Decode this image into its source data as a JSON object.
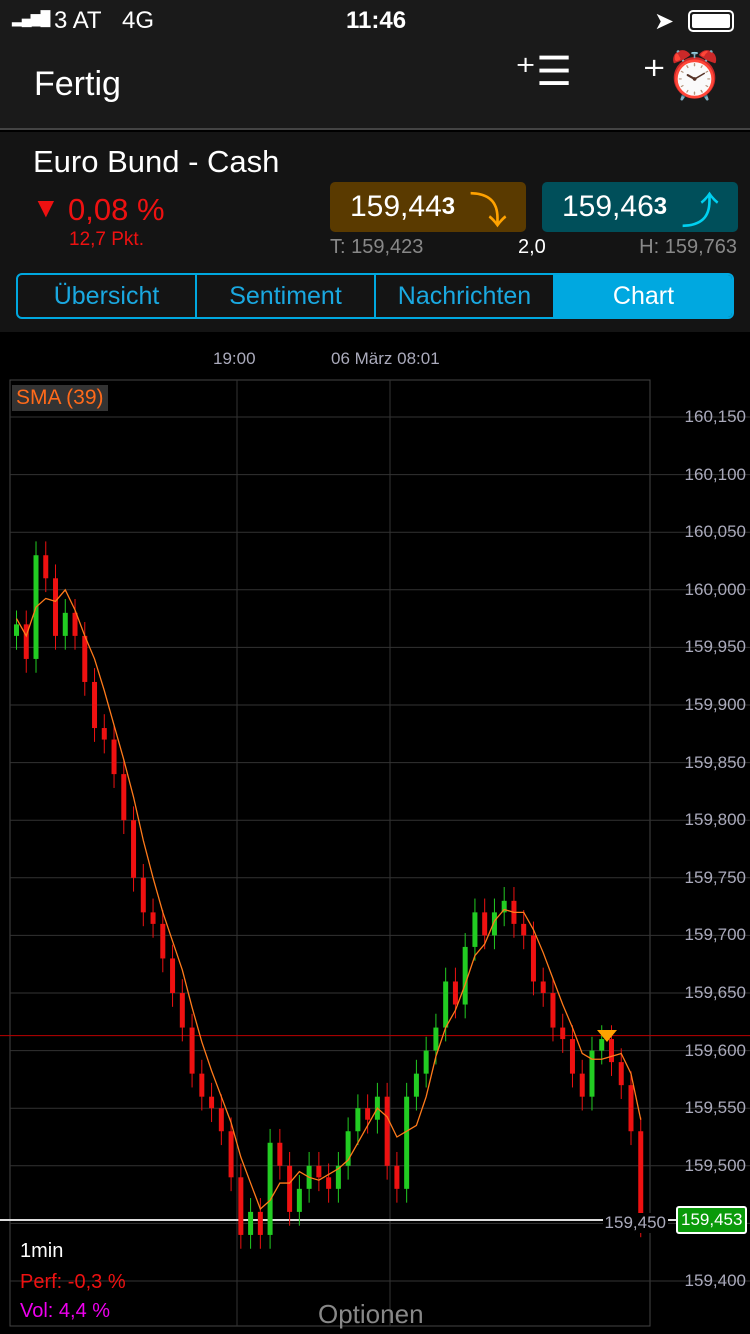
{
  "status": {
    "carrier": "3 AT",
    "network": "4G",
    "time": "11:46"
  },
  "nav": {
    "done": "Fertig",
    "icons": [
      "add-watchlist-icon",
      "add-alarm-icon"
    ]
  },
  "instrument": {
    "name": "Euro Bund - Cash",
    "change_pct": "0,08 %",
    "change_pts": "12,7 Pkt.",
    "direction": "down",
    "bid": "159,44",
    "bid_small": "3",
    "ask": "159,46",
    "ask_small": "3",
    "low": "T: 159,423",
    "spread": "2,0",
    "high": "H: 159,763"
  },
  "tabs": [
    "Übersicht",
    "Sentiment",
    "Nachrichten",
    "Chart"
  ],
  "active_tab": "Chart",
  "chart": {
    "indicator": "SMA (39)",
    "interval": "1min",
    "perf": "Perf: -0,3 %",
    "vol": "Vol: 4,4 %",
    "options": "Optionen",
    "current": "159,453",
    "x_labels": [
      "19:00",
      "06 März 08:01"
    ]
  },
  "chart_data": {
    "type": "candlestick",
    "ylim": [
      159.39,
      160.16
    ],
    "y_ticks": [
      "160,150",
      "160,100",
      "160,050",
      "160,000",
      "159,950",
      "159,900",
      "159,850",
      "159,800",
      "159,750",
      "159,700",
      "159,650",
      "159,600",
      "159,550",
      "159,500",
      "159,450",
      "159,400"
    ],
    "closes": [
      159.97,
      159.94,
      160.03,
      160.01,
      159.96,
      159.98,
      159.96,
      159.92,
      159.88,
      159.87,
      159.84,
      159.8,
      159.75,
      159.72,
      159.71,
      159.68,
      159.65,
      159.62,
      159.58,
      159.56,
      159.55,
      159.53,
      159.49,
      159.44,
      159.46,
      159.44,
      159.52,
      159.5,
      159.46,
      159.48,
      159.5,
      159.49,
      159.48,
      159.5,
      159.53,
      159.55,
      159.54,
      159.56,
      159.5,
      159.48,
      159.56,
      159.58,
      159.6,
      159.62,
      159.66,
      159.64,
      159.69,
      159.72,
      159.7,
      159.72,
      159.73,
      159.71,
      159.7,
      159.66,
      159.65,
      159.62,
      159.61,
      159.58,
      159.56,
      159.6,
      159.61,
      159.59,
      159.57,
      159.53,
      159.45
    ],
    "reference_line": 159.613,
    "current_price": 159.453,
    "colors": {
      "up": "#22cc22",
      "down": "#ee1111",
      "sma": "#ff7a1a"
    }
  }
}
